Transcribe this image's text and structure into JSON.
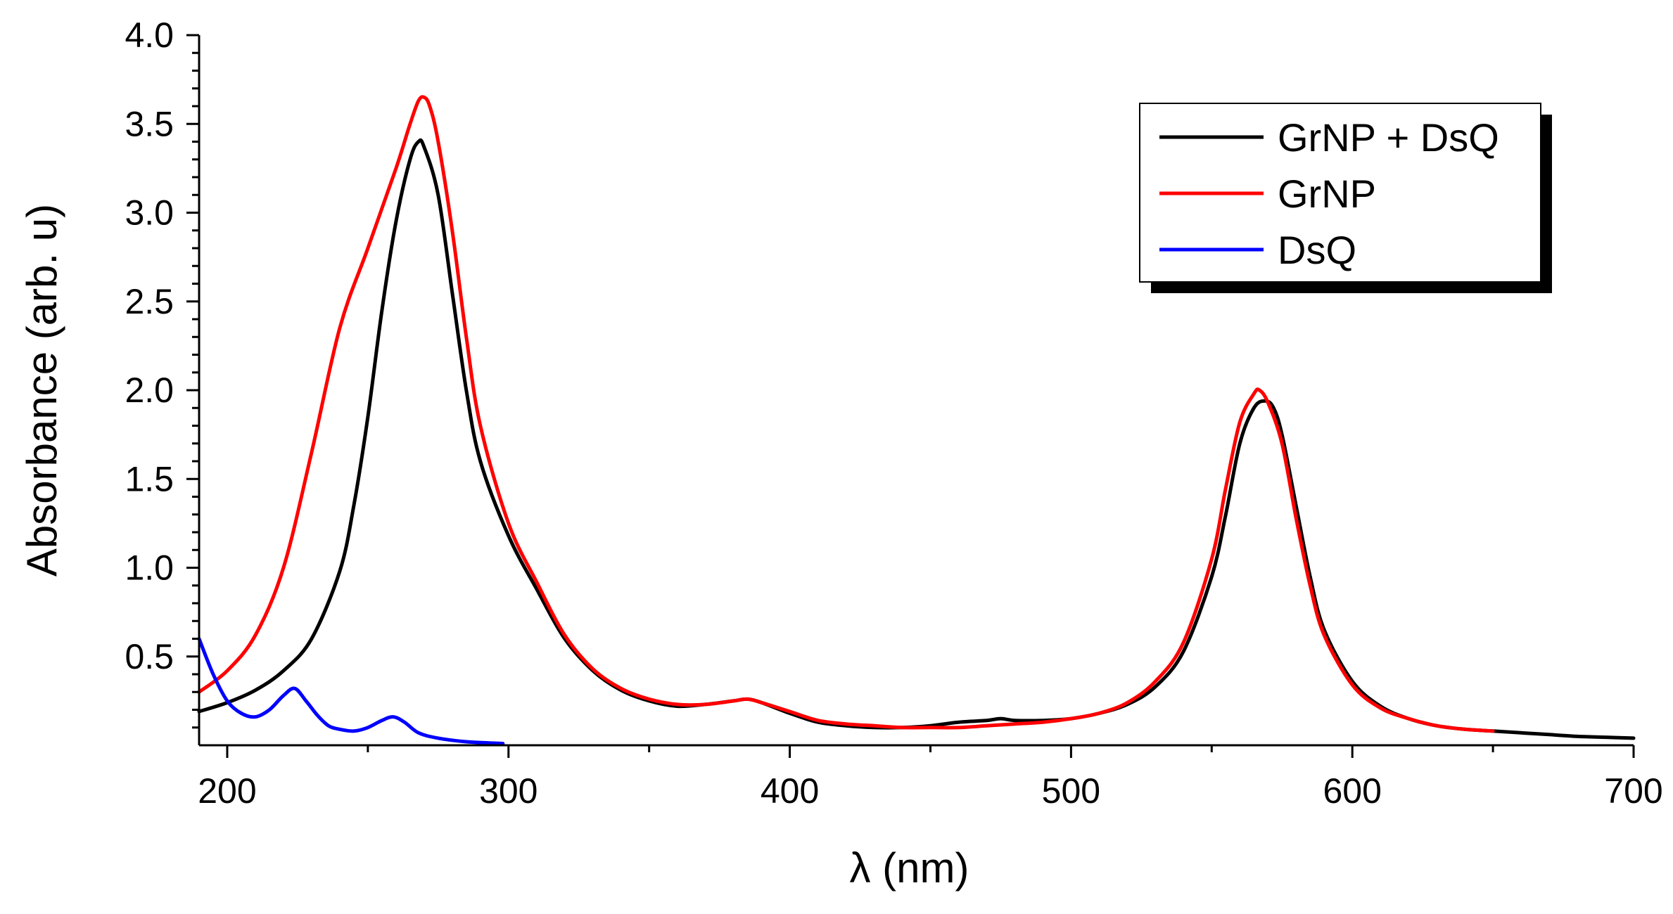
{
  "chart_data": {
    "type": "line",
    "xlabel": "λ (nm)",
    "ylabel": "Absorbance (arb. u)",
    "xlim": [
      190,
      700
    ],
    "ylim": [
      0,
      4.0
    ],
    "x_ticks": [
      200,
      300,
      400,
      500,
      600,
      700
    ],
    "x_tick_labels": [
      "200",
      "300",
      "400",
      "500",
      "600",
      "700"
    ],
    "y_ticks": [
      0.5,
      1.0,
      1.5,
      2.0,
      2.5,
      3.0,
      3.5,
      4.0
    ],
    "y_tick_labels": [
      "0.5",
      "1.0",
      "1.5",
      "2.0",
      "2.5",
      "3.0",
      "3.5",
      "4.0"
    ],
    "grid": false,
    "legend_position": "top-right",
    "series": [
      {
        "name": "GrNP + DsQ",
        "color": "#000000",
        "x": [
          190,
          200,
          210,
          220,
          230,
          240,
          245,
          250,
          255,
          260,
          265,
          268,
          270,
          275,
          280,
          285,
          290,
          300,
          310,
          320,
          330,
          340,
          350,
          360,
          370,
          380,
          385,
          390,
          400,
          410,
          420,
          430,
          440,
          450,
          460,
          470,
          475,
          480,
          490,
          500,
          510,
          520,
          530,
          540,
          550,
          555,
          560,
          565,
          569,
          572,
          575,
          580,
          585,
          590,
          600,
          610,
          620,
          630,
          640,
          650,
          660,
          670,
          680,
          690,
          700
        ],
        "y": [
          0.19,
          0.24,
          0.31,
          0.42,
          0.6,
          0.98,
          1.35,
          1.85,
          2.45,
          2.95,
          3.3,
          3.4,
          3.37,
          3.1,
          2.55,
          2.0,
          1.6,
          1.18,
          0.88,
          0.6,
          0.42,
          0.31,
          0.25,
          0.22,
          0.23,
          0.25,
          0.26,
          0.24,
          0.18,
          0.13,
          0.11,
          0.1,
          0.1,
          0.11,
          0.13,
          0.14,
          0.15,
          0.14,
          0.14,
          0.15,
          0.18,
          0.23,
          0.33,
          0.53,
          0.95,
          1.3,
          1.7,
          1.9,
          1.94,
          1.9,
          1.75,
          1.35,
          0.95,
          0.65,
          0.36,
          0.22,
          0.15,
          0.11,
          0.09,
          0.08,
          0.07,
          0.06,
          0.05,
          0.045,
          0.04
        ]
      },
      {
        "name": "GrNP",
        "color": "#ff0000",
        "x": [
          190,
          200,
          210,
          220,
          230,
          240,
          250,
          260,
          265,
          268,
          270,
          272,
          275,
          280,
          285,
          290,
          300,
          310,
          320,
          330,
          340,
          350,
          360,
          370,
          380,
          385,
          390,
          400,
          410,
          420,
          430,
          440,
          450,
          460,
          470,
          480,
          490,
          500,
          510,
          520,
          530,
          540,
          550,
          555,
          560,
          565,
          567,
          570,
          575,
          580,
          585,
          590,
          600,
          610,
          620,
          630,
          640,
          650
        ],
        "y": [
          0.3,
          0.42,
          0.62,
          1.0,
          1.65,
          2.35,
          2.8,
          3.25,
          3.5,
          3.63,
          3.65,
          3.6,
          3.4,
          2.9,
          2.3,
          1.8,
          1.25,
          0.92,
          0.62,
          0.43,
          0.32,
          0.26,
          0.23,
          0.23,
          0.25,
          0.26,
          0.24,
          0.19,
          0.14,
          0.12,
          0.11,
          0.1,
          0.1,
          0.1,
          0.11,
          0.12,
          0.13,
          0.15,
          0.18,
          0.24,
          0.36,
          0.58,
          1.05,
          1.45,
          1.82,
          1.98,
          2.0,
          1.93,
          1.7,
          1.28,
          0.9,
          0.62,
          0.34,
          0.21,
          0.15,
          0.11,
          0.09,
          0.08
        ]
      },
      {
        "name": "DsQ",
        "color": "#0000ff",
        "x": [
          190,
          195,
          200,
          205,
          210,
          215,
          220,
          224,
          228,
          232,
          236,
          240,
          245,
          250,
          255,
          259,
          263,
          268,
          275,
          285,
          298
        ],
        "y": [
          0.6,
          0.4,
          0.25,
          0.18,
          0.16,
          0.2,
          0.28,
          0.32,
          0.25,
          0.17,
          0.11,
          0.09,
          0.08,
          0.1,
          0.14,
          0.16,
          0.13,
          0.07,
          0.04,
          0.02,
          0.01
        ]
      }
    ]
  }
}
